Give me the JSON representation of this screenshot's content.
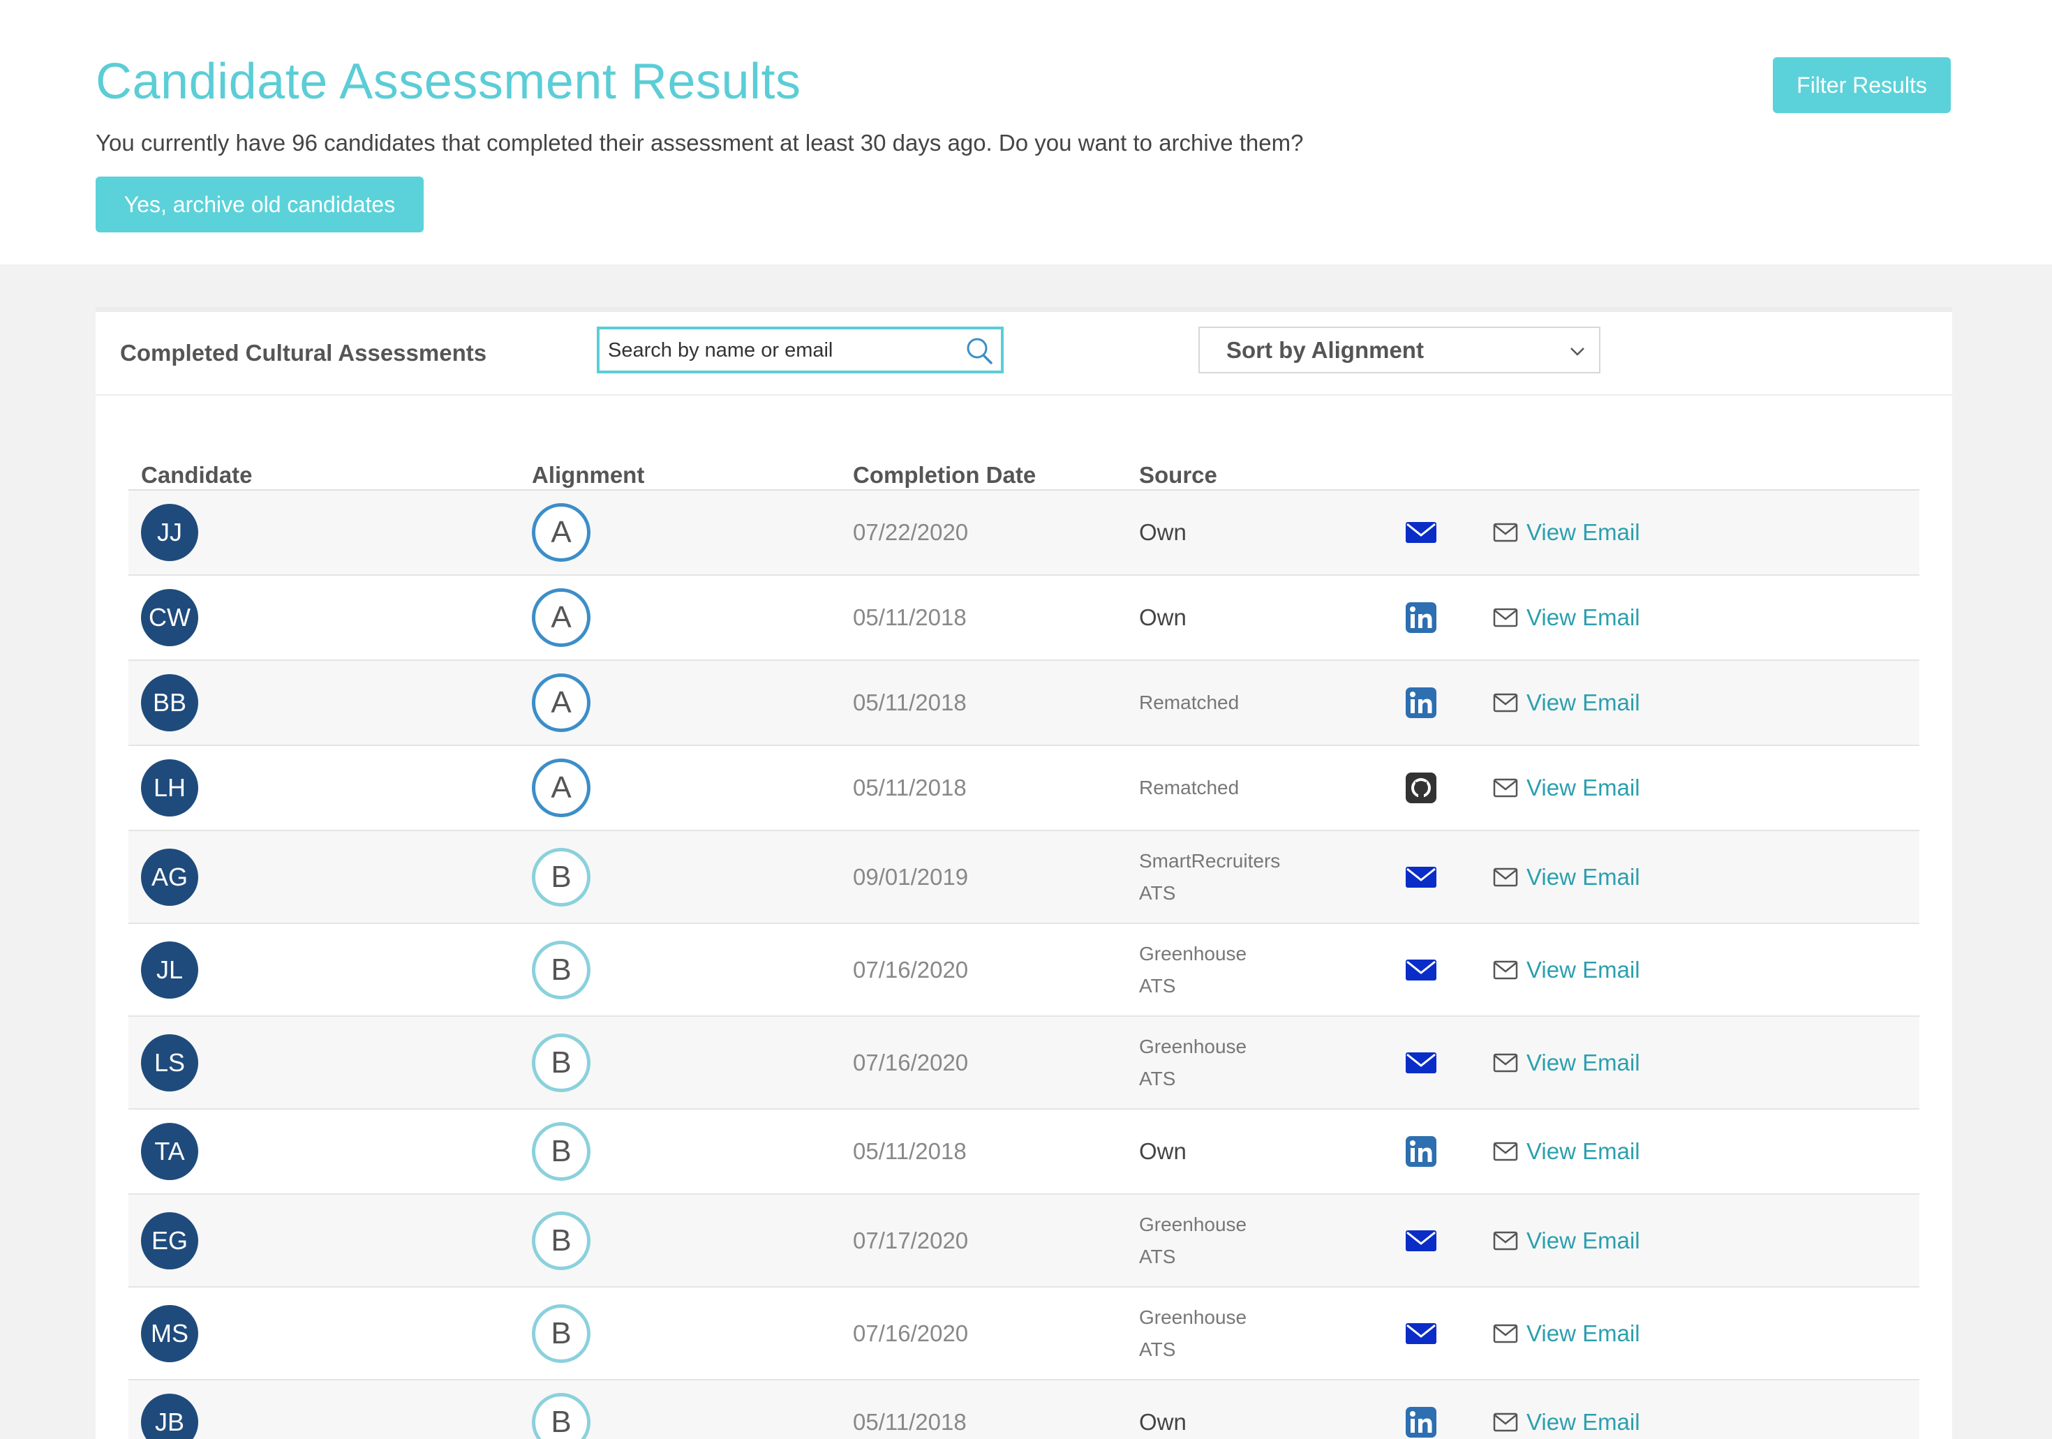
{
  "header": {
    "title": "Candidate Assessment Results",
    "intro": "You currently have 96 candidates that completed their assessment at least 30 days ago. Do you want to archive them?",
    "archive_button": "Yes, archive old candidates",
    "filter_button": "Filter Results"
  },
  "panel": {
    "title": "Completed Cultural Assessments",
    "search_placeholder": "Search by name or email",
    "sort_label": "Sort by Alignment"
  },
  "table": {
    "columns": [
      "Candidate",
      "Alignment",
      "Completion Date",
      "Source"
    ],
    "view_email_label": "View Email",
    "rows": [
      {
        "initials": "JJ",
        "grade": "A",
        "date": "07/22/2020",
        "source": "Own",
        "icon": "email-icon"
      },
      {
        "initials": "CW",
        "grade": "A",
        "date": "05/11/2018",
        "source": "Own",
        "icon": "linkedin-icon"
      },
      {
        "initials": "BB",
        "grade": "A",
        "date": "05/11/2018",
        "source": "Rematched",
        "icon": "linkedin-icon"
      },
      {
        "initials": "LH",
        "grade": "A",
        "date": "05/11/2018",
        "source": "Rematched",
        "icon": "github-icon"
      },
      {
        "initials": "AG",
        "grade": "B",
        "date": "09/01/2019",
        "source": "SmartRecruiters\nATS",
        "icon": "email-icon"
      },
      {
        "initials": "JL",
        "grade": "B",
        "date": "07/16/2020",
        "source": "Greenhouse\nATS",
        "icon": "email-icon"
      },
      {
        "initials": "LS",
        "grade": "B",
        "date": "07/16/2020",
        "source": "Greenhouse\nATS",
        "icon": "email-icon"
      },
      {
        "initials": "TA",
        "grade": "B",
        "date": "05/11/2018",
        "source": "Own",
        "icon": "linkedin-icon"
      },
      {
        "initials": "EG",
        "grade": "B",
        "date": "07/17/2020",
        "source": "Greenhouse\nATS",
        "icon": "email-icon"
      },
      {
        "initials": "MS",
        "grade": "B",
        "date": "07/16/2020",
        "source": "Greenhouse\nATS",
        "icon": "email-icon"
      },
      {
        "initials": "JB",
        "grade": "B",
        "date": "05/11/2018",
        "source": "Own",
        "icon": "linkedin-icon"
      }
    ]
  },
  "colors": {
    "accent": "#5bd2d9",
    "avatar": "#1f4b7c",
    "grade_a": "#3b8ec9",
    "grade_b": "#8ad1dc",
    "link": "#2a9fae",
    "email_icon": "#0a2dc7",
    "linkedin_icon": "#2d6fb0",
    "github_icon": "#333333"
  }
}
